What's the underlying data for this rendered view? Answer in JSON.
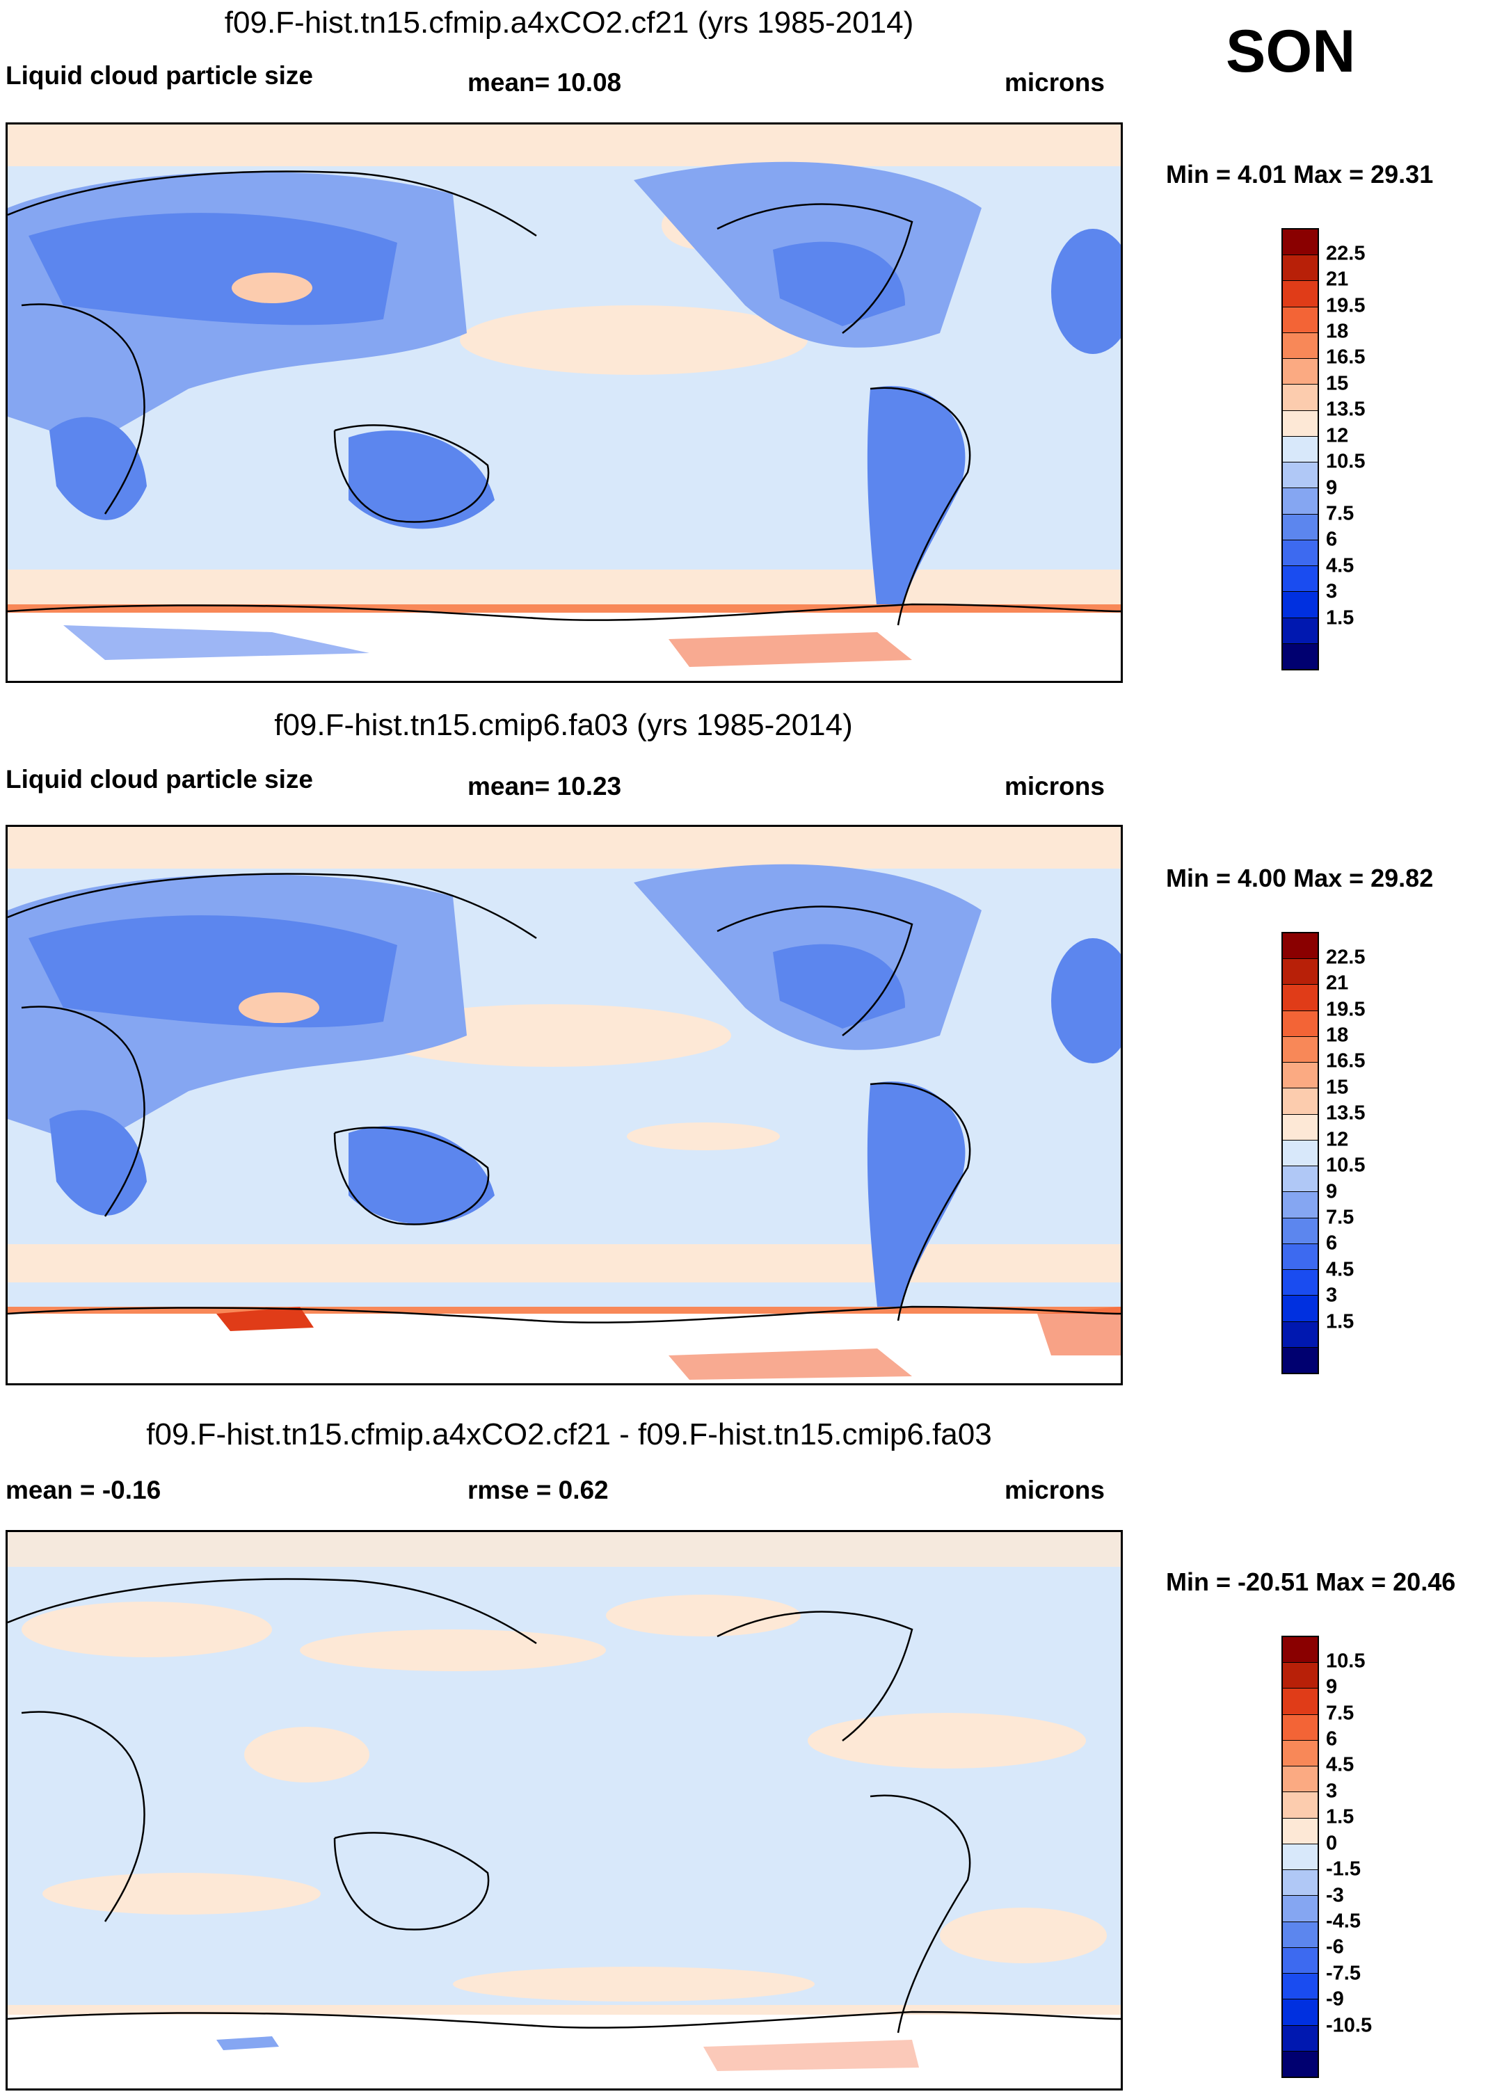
{
  "season": "SON",
  "panels": [
    {
      "title": "f09.F-hist.tn15.cfmip.a4xCO2.cf21 (yrs 1985-2014)",
      "left_label": "Liquid cloud particle size",
      "center_label": "mean=  10.08",
      "units": "microns",
      "minmax": "Min =   4.01 Max =  29.31",
      "colorbar_labels": [
        "22.5",
        "21",
        "19.5",
        "18",
        "16.5",
        "15",
        "13.5",
        "12",
        "10.5",
        "9",
        "7.5",
        "6",
        "4.5",
        "3",
        "1.5"
      ]
    },
    {
      "title": "f09.F-hist.tn15.cmip6.fa03 (yrs 1985-2014)",
      "left_label": "Liquid cloud particle size",
      "center_label": "mean=  10.23",
      "units": "microns",
      "minmax": "Min =   4.00 Max =  29.82",
      "colorbar_labels": [
        "22.5",
        "21",
        "19.5",
        "18",
        "16.5",
        "15",
        "13.5",
        "12",
        "10.5",
        "9",
        "7.5",
        "6",
        "4.5",
        "3",
        "1.5"
      ]
    },
    {
      "title": "f09.F-hist.tn15.cfmip.a4xCO2.cf21 - f09.F-hist.tn15.cmip6.fa03",
      "left_label": "mean =  -0.16",
      "center_label": "rmse =   0.62",
      "units": "microns",
      "minmax": "Min = -20.51 Max =  20.46",
      "colorbar_labels": [
        "10.5",
        "9",
        "7.5",
        "6",
        "4.5",
        "3",
        "1.5",
        "0",
        "-1.5",
        "-3",
        "-4.5",
        "-6",
        "-7.5",
        "-9",
        "-10.5"
      ]
    }
  ],
  "colorbar_colors": [
    "#000070",
    "#0018b0",
    "#0030e0",
    "#1a4cf0",
    "#3d6af0",
    "#5c86ee",
    "#85a6f2",
    "#b0c8f6",
    "#d8e8fa",
    "#fde8d6",
    "#fcccae",
    "#fbaa82",
    "#f88858",
    "#f36436",
    "#e03c18",
    "#b82008",
    "#8a0000"
  ]
}
